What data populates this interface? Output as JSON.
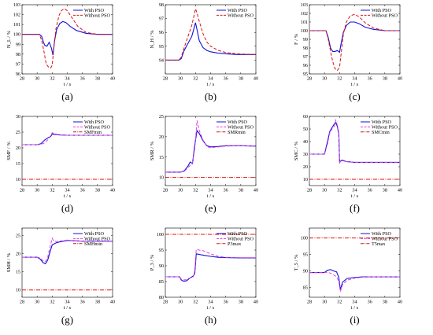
{
  "figure": {
    "legend_position": "top-right",
    "colors": {
      "with_pso": "#1010d8",
      "without_pso": "#e01010",
      "limit": "#e01010",
      "magenta": "#e040e0"
    }
  },
  "chart_data": [
    {
      "panel": "(a)",
      "type": "line",
      "ylabel": "N_L / %",
      "xlabel": "t / s",
      "xlim": [
        28,
        40
      ],
      "ylim": [
        96,
        103
      ],
      "xticks": [
        "28",
        "30",
        "32",
        "34",
        "36",
        "38",
        "40"
      ],
      "yticks": [
        "96",
        "97",
        "98",
        "99",
        "100",
        "101",
        "102",
        "103"
      ],
      "series": [
        {
          "name": "With PSO",
          "style": "solid",
          "color": "#1010d8",
          "x": [
            28,
            30.3,
            30.6,
            30.8,
            31.0,
            31.3,
            31.6,
            31.9,
            32.1,
            32.3,
            32.6,
            33.0,
            33.4,
            33.8,
            34.4,
            35.2,
            36.5,
            38,
            40
          ],
          "y": [
            100,
            100,
            99.8,
            99.3,
            98.9,
            98.8,
            99.2,
            98.6,
            97.9,
            99.3,
            100.5,
            101.1,
            101.3,
            101.2,
            100.8,
            100.4,
            100.1,
            100,
            100
          ]
        },
        {
          "name": "Without PSO",
          "style": "dashed",
          "color": "#e01010",
          "x": [
            28,
            30.3,
            30.6,
            30.9,
            31.2,
            31.5,
            31.8,
            32.0,
            32.2,
            32.5,
            32.9,
            33.2,
            33.6,
            34.0,
            34.6,
            35.4,
            36.5,
            38,
            40
          ],
          "y": [
            100,
            100,
            99.4,
            98.3,
            97.0,
            96.7,
            96.6,
            96.9,
            98.5,
            100.6,
            101.9,
            102.4,
            102.6,
            102.4,
            101.7,
            100.8,
            100.2,
            100,
            100
          ]
        }
      ]
    },
    {
      "panel": "(b)",
      "type": "line",
      "ylabel": "N_H / %",
      "xlabel": "t / s",
      "xlim": [
        28,
        40
      ],
      "ylim": [
        93,
        98
      ],
      "xticks": [
        "28",
        "30",
        "32",
        "34",
        "36",
        "38",
        "40"
      ],
      "yticks": [
        "94",
        "95",
        "96",
        "97",
        "98"
      ],
      "series": [
        {
          "name": "With PSO",
          "style": "solid",
          "color": "#1010d8",
          "x": [
            28,
            29.8,
            30.1,
            30.5,
            31.0,
            31.5,
            31.8,
            32.0,
            32.2,
            32.5,
            33.0,
            33.5,
            34.0,
            35.0,
            36.0,
            37.5,
            40
          ],
          "y": [
            94,
            94,
            94.1,
            94.7,
            95.2,
            95.7,
            96.3,
            96.7,
            96.2,
            95.4,
            94.9,
            94.7,
            94.6,
            94.5,
            94.45,
            94.4,
            94.4
          ]
        },
        {
          "name": "Without PSO",
          "style": "dashed",
          "color": "#e01010",
          "x": [
            28,
            29.8,
            30.1,
            30.5,
            31.0,
            31.5,
            31.8,
            32.0,
            32.2,
            32.5,
            33.0,
            33.5,
            34.0,
            35.0,
            36.0,
            37.5,
            40
          ],
          "y": [
            94,
            94,
            94.2,
            94.9,
            95.7,
            96.5,
            97.2,
            97.7,
            97.4,
            96.8,
            95.9,
            95.3,
            95.0,
            94.7,
            94.55,
            94.45,
            94.4
          ]
        }
      ]
    },
    {
      "panel": "(c)",
      "type": "line",
      "ylabel": "F / %",
      "xlabel": "t / s",
      "xlim": [
        28,
        40
      ],
      "ylim": [
        95,
        103
      ],
      "xticks": [
        "28",
        "30",
        "32",
        "34",
        "36",
        "38",
        "40"
      ],
      "yticks": [
        "95",
        "96",
        "97",
        "98",
        "99",
        "100",
        "101",
        "102",
        "103"
      ],
      "series": [
        {
          "name": "With PSO",
          "style": "solid",
          "color": "#1010d8",
          "x": [
            28,
            30.2,
            30.5,
            30.8,
            31.1,
            31.4,
            31.7,
            32.0,
            32.2,
            32.5,
            32.9,
            33.4,
            34.0,
            34.6,
            35.4,
            36.5,
            38,
            40
          ],
          "y": [
            100,
            100,
            99.2,
            98.0,
            97.6,
            97.6,
            97.7,
            97.5,
            98.5,
            99.8,
            100.6,
            101.0,
            101.0,
            100.8,
            100.4,
            100.15,
            100,
            100
          ]
        },
        {
          "name": "Without PSO",
          "style": "dashed",
          "color": "#e01010",
          "x": [
            28,
            30.2,
            30.5,
            30.8,
            31.1,
            31.4,
            31.7,
            32.0,
            32.2,
            32.5,
            32.9,
            33.4,
            34.0,
            34.6,
            35.4,
            36.5,
            38,
            40
          ],
          "y": [
            100,
            100,
            99.0,
            97.6,
            96.4,
            95.6,
            95.4,
            95.8,
            97.3,
            99.6,
            101.0,
            101.7,
            101.9,
            101.6,
            100.9,
            100.3,
            100,
            100
          ]
        }
      ]
    },
    {
      "panel": "(d)",
      "type": "line",
      "ylabel": "SMF / %",
      "xlabel": "t / s",
      "xlim": [
        28,
        40
      ],
      "ylim": [
        8,
        30
      ],
      "xticks": [
        "28",
        "30",
        "32",
        "34",
        "36",
        "38",
        "40"
      ],
      "yticks": [
        "10",
        "15",
        "20",
        "25",
        "30"
      ],
      "series": [
        {
          "name": "With PSO",
          "style": "solid",
          "color": "#1010d8",
          "x": [
            28,
            30.0,
            30.5,
            31.0,
            31.5,
            31.8,
            32.0,
            32.3,
            33.0,
            34.0,
            36.0,
            40
          ],
          "y": [
            21,
            21,
            21.3,
            22.5,
            23.3,
            23.6,
            24.4,
            24.3,
            24.1,
            24,
            24,
            24
          ]
        },
        {
          "name": "Without PSO",
          "style": "dashed",
          "color": "#e040e0",
          "x": [
            28,
            30.0,
            30.5,
            31.0,
            31.5,
            31.8,
            32.0,
            32.3,
            33.0,
            34.0,
            36.0,
            40
          ],
          "y": [
            21,
            21,
            21.1,
            21.6,
            22.8,
            23.9,
            24.8,
            24.5,
            24.1,
            24,
            24,
            24
          ]
        },
        {
          "name": "SMFmin",
          "style": "dashdot",
          "color": "#e01010",
          "x": [
            28,
            40
          ],
          "y": [
            10,
            10
          ]
        }
      ]
    },
    {
      "panel": "(e)",
      "type": "line",
      "ylabel": "SMR / %",
      "xlabel": "t / s",
      "xlim": [
        28,
        40
      ],
      "ylim": [
        8,
        25
      ],
      "xticks": [
        "28",
        "30",
        "32",
        "34",
        "36",
        "38",
        "40"
      ],
      "yticks": [
        "10",
        "15",
        "20",
        "25"
      ],
      "series": [
        {
          "name": "With PSO",
          "style": "solid",
          "color": "#1010d8",
          "x": [
            28,
            30.0,
            30.5,
            31.0,
            31.3,
            31.6,
            31.9,
            32.2,
            32.5,
            33.0,
            33.5,
            34.0,
            35.0,
            36.0,
            38.0,
            40
          ],
          "y": [
            11.3,
            11.3,
            11.6,
            12.8,
            13.8,
            13.4,
            18.0,
            21.5,
            20.8,
            19.0,
            17.8,
            17.5,
            17.6,
            17.8,
            17.8,
            17.7
          ]
        },
        {
          "name": "Without PSO",
          "style": "dashed",
          "color": "#e040e0",
          "x": [
            28,
            30.0,
            30.5,
            31.0,
            31.3,
            31.6,
            31.9,
            32.2,
            32.5,
            33.0,
            33.5,
            34.0,
            35.0,
            36.0,
            38.0,
            40
          ],
          "y": [
            11.3,
            11.3,
            11.5,
            12.4,
            13.0,
            13.6,
            17.0,
            24.0,
            21.5,
            19.2,
            17.6,
            17.3,
            17.5,
            17.7,
            17.8,
            17.7
          ]
        },
        {
          "name": "SMRmin",
          "style": "dashdot",
          "color": "#e01010",
          "x": [
            28,
            40
          ],
          "y": [
            10,
            10
          ]
        }
      ]
    },
    {
      "panel": "(f)",
      "type": "line",
      "ylabel": "SMC / %",
      "xlabel": "t / s",
      "xlim": [
        28,
        40
      ],
      "ylim": [
        5,
        60
      ],
      "xticks": [
        "28",
        "30",
        "32",
        "34",
        "36",
        "38",
        "40"
      ],
      "yticks": [
        "10",
        "20",
        "30",
        "40",
        "50",
        "60"
      ],
      "series": [
        {
          "name": "With PSO",
          "style": "solid",
          "color": "#1010d8",
          "x": [
            28,
            30.0,
            30.4,
            30.7,
            31.0,
            31.3,
            31.5,
            31.7,
            31.9,
            32.0,
            32.3,
            33.0,
            34.0,
            36.0,
            40
          ],
          "y": [
            30,
            30,
            40,
            48,
            51,
            54,
            55,
            52,
            46,
            24,
            25,
            24,
            23.5,
            23.5,
            23.5
          ]
        },
        {
          "name": "Without PSO",
          "style": "dashed",
          "color": "#e040e0",
          "x": [
            28,
            30.0,
            30.4,
            30.7,
            31.0,
            31.3,
            31.5,
            31.7,
            31.9,
            32.0,
            32.3,
            33.0,
            34.0,
            36.0,
            40
          ],
          "y": [
            30,
            30,
            38,
            47,
            50,
            52,
            57,
            53,
            47,
            23,
            25.5,
            24,
            23.5,
            23.5,
            23.5
          ]
        },
        {
          "name": "SMCmin",
          "style": "dashdot",
          "color": "#e01010",
          "x": [
            28,
            40
          ],
          "y": [
            10,
            10
          ]
        }
      ]
    },
    {
      "panel": "(g)",
      "type": "line",
      "ylabel": "SMH / %",
      "xlabel": "t / s",
      "xlim": [
        28,
        40
      ],
      "ylim": [
        8,
        27
      ],
      "xticks": [
        "28",
        "30",
        "32",
        "34",
        "36",
        "38",
        "40"
      ],
      "yticks": [
        "10",
        "15",
        "20",
        "25"
      ],
      "series": [
        {
          "name": "With PSO",
          "style": "solid",
          "color": "#1010d8",
          "x": [
            28,
            30.0,
            30.4,
            30.8,
            31.1,
            31.4,
            31.7,
            32.0,
            32.2,
            32.6,
            33.0,
            34.0,
            35.0,
            36.0,
            40
          ],
          "y": [
            19,
            19,
            18.5,
            17.5,
            17.2,
            18.2,
            20.4,
            22.4,
            22.6,
            23.0,
            23.2,
            23.6,
            23.5,
            23.4,
            23.4
          ]
        },
        {
          "name": "Without PSO",
          "style": "dashed",
          "color": "#e040e0",
          "x": [
            28,
            30.0,
            30.4,
            30.8,
            31.1,
            31.4,
            31.7,
            32.0,
            32.2,
            32.6,
            33.0,
            34.0,
            35.0,
            36.0,
            40
          ],
          "y": [
            19,
            19,
            18.8,
            18.0,
            17.8,
            19.0,
            21.8,
            24.2,
            23.4,
            23.3,
            23.4,
            23.7,
            23.5,
            23.4,
            23.4
          ]
        },
        {
          "name": "SMHmin",
          "style": "dashdot",
          "color": "#e01010",
          "x": [
            28,
            40
          ],
          "y": [
            10,
            10
          ]
        }
      ]
    },
    {
      "panel": "(h)",
      "type": "line",
      "ylabel": "P_3 / %",
      "xlabel": "t / s",
      "xlim": [
        28,
        40
      ],
      "ylim": [
        80,
        102
      ],
      "xticks": [
        "28",
        "30",
        "32",
        "34",
        "36",
        "38",
        "40"
      ],
      "yticks": [
        "80",
        "85",
        "90",
        "95",
        "100"
      ],
      "series": [
        {
          "name": "With PSO",
          "style": "solid",
          "color": "#1010d8",
          "x": [
            28,
            29.9,
            30.1,
            30.4,
            30.8,
            31.1,
            31.4,
            31.7,
            31.9,
            32.1,
            32.5,
            33.0,
            34.0,
            35.0,
            36.0,
            38.0,
            40
          ],
          "y": [
            86.5,
            86.5,
            85.5,
            85.1,
            85.2,
            85.8,
            86.3,
            86.8,
            87.5,
            93.8,
            93.6,
            93.4,
            93.0,
            92.7,
            92.6,
            92.5,
            92.5
          ]
        },
        {
          "name": "Without PSO",
          "style": "dashed",
          "color": "#e040e0",
          "x": [
            28,
            29.9,
            30.1,
            30.4,
            30.8,
            31.1,
            31.4,
            31.7,
            31.9,
            32.1,
            32.5,
            33.0,
            34.0,
            35.0,
            36.0,
            38.0,
            40
          ],
          "y": [
            86.5,
            86.5,
            85.8,
            85.5,
            85.6,
            86.0,
            86.2,
            86.5,
            88.5,
            95.2,
            95.0,
            94.8,
            93.8,
            93.0,
            92.7,
            92.6,
            92.6
          ]
        },
        {
          "name": "P3max",
          "style": "dashdot",
          "color": "#e01010",
          "x": [
            28,
            40
          ],
          "y": [
            100,
            100
          ]
        }
      ]
    },
    {
      "panel": "(i)",
      "type": "line",
      "ylabel": "T_5 / %",
      "xlabel": "t / s",
      "xlim": [
        28,
        40
      ],
      "ylim": [
        82,
        103
      ],
      "xticks": [
        "28",
        "30",
        "32",
        "34",
        "36",
        "38",
        "40"
      ],
      "yticks": [
        "85",
        "90",
        "95",
        "100"
      ],
      "series": [
        {
          "name": "With PSO",
          "style": "solid",
          "color": "#1010d8",
          "x": [
            28,
            30.0,
            30.4,
            30.8,
            31.2,
            31.6,
            31.9,
            32.1,
            32.4,
            33.0,
            34.0,
            35.0,
            36.0,
            38.0,
            40
          ],
          "y": [
            89.5,
            89.5,
            90.2,
            90.4,
            90.0,
            89.7,
            88.0,
            84.3,
            86.6,
            87.7,
            88.0,
            88.2,
            88.2,
            88.2,
            88.2
          ]
        },
        {
          "name": "Without PSO",
          "style": "dashed",
          "color": "#e040e0",
          "x": [
            28,
            30.0,
            30.4,
            30.8,
            31.2,
            31.6,
            31.9,
            32.1,
            32.4,
            33.0,
            34.0,
            35.0,
            36.0,
            38.0,
            40
          ],
          "y": [
            89.5,
            89.5,
            89.6,
            89.3,
            88.8,
            88.2,
            86.8,
            83.7,
            85.8,
            87.2,
            87.8,
            88.1,
            88.2,
            88.2,
            88.2
          ]
        },
        {
          "name": "T5max",
          "style": "dashdot",
          "color": "#e01010",
          "x": [
            28,
            40
          ],
          "y": [
            100,
            100
          ]
        }
      ]
    }
  ]
}
